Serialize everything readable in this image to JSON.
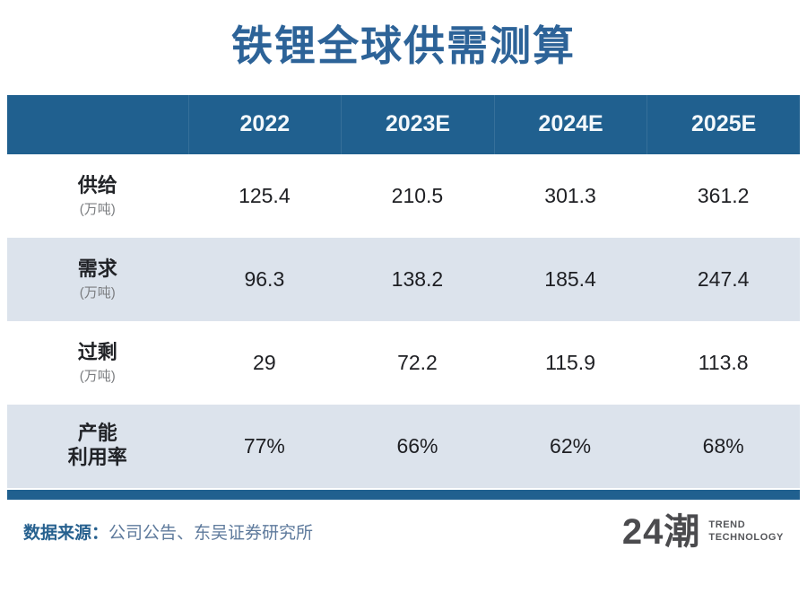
{
  "title": "铁锂全球供需测算",
  "table": {
    "header": [
      "2022",
      "2023E",
      "2024E",
      "2025E"
    ],
    "rows": [
      {
        "label": "供给",
        "sub": "(万吨)",
        "values": [
          "125.4",
          "210.5",
          "301.3",
          "361.2"
        ]
      },
      {
        "label": "需求",
        "sub": "(万吨)",
        "values": [
          "96.3",
          "138.2",
          "185.4",
          "247.4"
        ]
      },
      {
        "label": "过剩",
        "sub": "(万吨)",
        "values": [
          "29",
          "72.2",
          "115.9",
          "113.8"
        ]
      },
      {
        "label": "产能\n利用率",
        "sub": "",
        "values": [
          "77%",
          "66%",
          "62%",
          "68%"
        ]
      }
    ]
  },
  "footer": {
    "source_label": "数据来源：",
    "source_text": "公司公告、东吴证券研究所",
    "logo_text": "24潮",
    "logo_line1": "TREND",
    "logo_line2": "TECHNOLOGY"
  },
  "colors": {
    "header_blue": "#20608F",
    "title_blue": "#2D6398",
    "row_alt_blue": "#DCE3EC",
    "value_text": "#1E1F23",
    "source_text": "#5E7A9C"
  },
  "chart_data": {
    "type": "table",
    "title": "铁锂全球供需测算",
    "categories": [
      "2022",
      "2023E",
      "2024E",
      "2025E"
    ],
    "series": [
      {
        "name": "供给(万吨)",
        "values": [
          125.4,
          210.5,
          301.3,
          361.2
        ]
      },
      {
        "name": "需求(万吨)",
        "values": [
          96.3,
          138.2,
          185.4,
          247.4
        ]
      },
      {
        "name": "过剩(万吨)",
        "values": [
          29,
          72.2,
          115.9,
          113.8
        ]
      },
      {
        "name": "产能利用率(%)",
        "values": [
          77,
          66,
          62,
          68
        ]
      }
    ],
    "source": "公司公告、东吴证券研究所",
    "legend_position": "none",
    "grid": false
  }
}
